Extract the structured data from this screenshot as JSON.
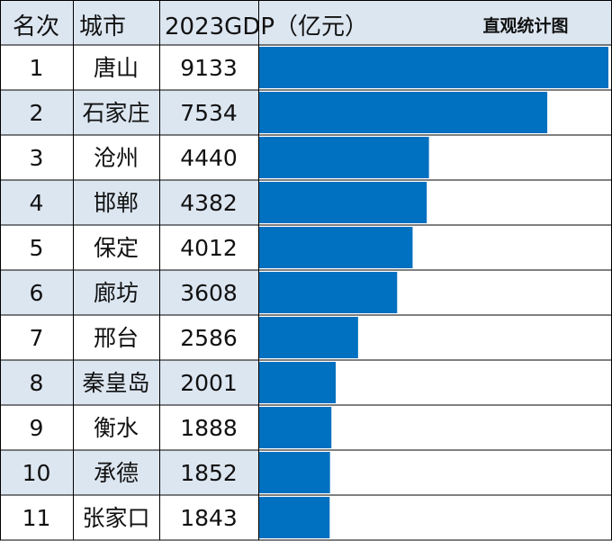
{
  "header": {
    "rank": "名次",
    "city": "城市",
    "gdp": "2023GDP（亿元）",
    "note": "直观统计图"
  },
  "colors": {
    "bar": "#0070c0",
    "header_bg": "#dce6f1",
    "alt_row_bg": "#dce6f1",
    "note": "#ff0000",
    "grid": "#000000"
  },
  "chart_data": {
    "type": "bar",
    "title": "",
    "xlabel": "",
    "ylabel": "",
    "categories": [
      "唐山",
      "石家庄",
      "沧州",
      "邯郸",
      "保定",
      "廊坊",
      "邢台",
      "秦皇岛",
      "衡水",
      "承德",
      "张家口"
    ],
    "ranks": [
      "1",
      "2",
      "3",
      "4",
      "5",
      "6",
      "7",
      "8",
      "9",
      "10",
      "11"
    ],
    "values": [
      9133,
      7534,
      4440,
      4382,
      4012,
      3608,
      2586,
      2001,
      1888,
      1852,
      1843
    ],
    "xlim": [
      0,
      9133
    ],
    "orientation": "horizontal",
    "grid": false
  }
}
